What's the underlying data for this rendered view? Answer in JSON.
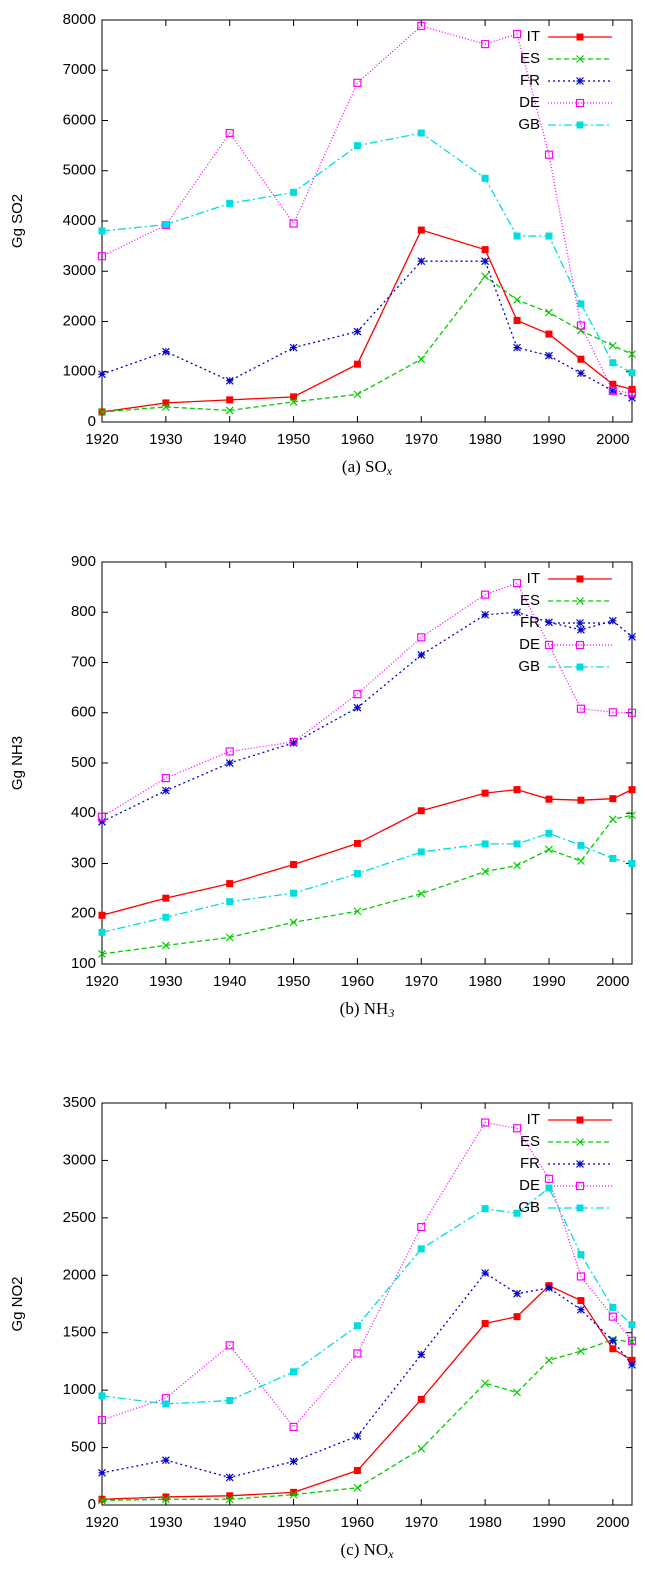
{
  "chart_data": [
    {
      "type": "line",
      "ylabel": "Gg SO2",
      "caption": {
        "main": "(a) SO",
        "sub": "x"
      },
      "x": [
        1920,
        1930,
        1940,
        1950,
        1960,
        1970,
        1980,
        1985,
        1990,
        1995,
        2000,
        2003
      ],
      "xlim": [
        1920,
        2003
      ],
      "xticks": [
        1920,
        1930,
        1940,
        1950,
        1960,
        1970,
        1980,
        1990,
        2000
      ],
      "ylim": [
        0,
        8000
      ],
      "yticks": [
        0,
        1000,
        2000,
        3000,
        4000,
        5000,
        6000,
        7000,
        8000
      ],
      "series": [
        {
          "name": "IT",
          "color": "#ff0000",
          "values": [
            200,
            380,
            440,
            500,
            1150,
            3820,
            3430,
            2020,
            1750,
            1250,
            750,
            650
          ]
        },
        {
          "name": "ES",
          "color": "#00cc00",
          "values": [
            200,
            300,
            230,
            400,
            550,
            1250,
            2900,
            2430,
            2180,
            1820,
            1520,
            1350
          ]
        },
        {
          "name": "FR",
          "color": "#0000cc",
          "values": [
            950,
            1400,
            820,
            1480,
            1800,
            3200,
            3200,
            1480,
            1320,
            970,
            620,
            480
          ]
        },
        {
          "name": "DE",
          "color": "#ff00ff",
          "values": [
            3300,
            3920,
            5750,
            3950,
            6750,
            7880,
            7520,
            7720,
            5320,
            1920,
            620,
            580
          ]
        },
        {
          "name": "GB",
          "color": "#00dddd",
          "values": [
            3800,
            3930,
            4350,
            4570,
            5500,
            5750,
            4850,
            3700,
            3700,
            2350,
            1180,
            980
          ]
        }
      ]
    },
    {
      "type": "line",
      "ylabel": "Gg NH3",
      "caption": {
        "main": "(b) NH",
        "sub": "3"
      },
      "x": [
        1920,
        1930,
        1940,
        1950,
        1960,
        1970,
        1980,
        1985,
        1990,
        1995,
        2000,
        2003
      ],
      "xlim": [
        1920,
        2003
      ],
      "xticks": [
        1920,
        1930,
        1940,
        1950,
        1960,
        1970,
        1980,
        1990,
        2000
      ],
      "ylim": [
        100,
        900
      ],
      "yticks": [
        100,
        200,
        300,
        400,
        500,
        600,
        700,
        800,
        900
      ],
      "series": [
        {
          "name": "IT",
          "color": "#ff0000",
          "values": [
            197,
            231,
            260,
            298,
            340,
            405,
            440,
            447,
            428,
            426,
            429,
            447
          ]
        },
        {
          "name": "ES",
          "color": "#00cc00",
          "values": [
            120,
            137,
            153,
            183,
            205,
            240,
            284,
            296,
            328,
            305,
            388,
            396
          ]
        },
        {
          "name": "FR",
          "color": "#0000cc",
          "values": [
            383,
            445,
            500,
            540,
            610,
            715,
            795,
            800,
            780,
            765,
            783,
            751
          ]
        },
        {
          "name": "DE",
          "color": "#ff00ff",
          "values": [
            393,
            470,
            523,
            542,
            637,
            750,
            835,
            858,
            735,
            608,
            601,
            600
          ]
        },
        {
          "name": "GB",
          "color": "#00dddd",
          "values": [
            163,
            193,
            224,
            241,
            280,
            323,
            339,
            339,
            360,
            336,
            310,
            300
          ]
        }
      ]
    },
    {
      "type": "line",
      "ylabel": "Gg NO2",
      "caption": {
        "main": "(c) NO",
        "sub": "x"
      },
      "x": [
        1920,
        1930,
        1940,
        1950,
        1960,
        1970,
        1980,
        1985,
        1990,
        1995,
        2000,
        2003
      ],
      "xlim": [
        1920,
        2003
      ],
      "xticks": [
        1920,
        1930,
        1940,
        1950,
        1960,
        1970,
        1980,
        1990,
        2000
      ],
      "ylim": [
        0,
        3500
      ],
      "yticks": [
        0,
        500,
        1000,
        1500,
        2000,
        2500,
        3000,
        3500
      ],
      "series": [
        {
          "name": "IT",
          "color": "#ff0000",
          "values": [
            50,
            70,
            80,
            110,
            300,
            920,
            1580,
            1640,
            1910,
            1780,
            1360,
            1260
          ]
        },
        {
          "name": "ES",
          "color": "#00cc00",
          "values": [
            40,
            50,
            50,
            90,
            150,
            490,
            1060,
            980,
            1260,
            1340,
            1440,
            1420
          ]
        },
        {
          "name": "FR",
          "color": "#0000cc",
          "values": [
            280,
            390,
            240,
            380,
            600,
            1310,
            2020,
            1840,
            1890,
            1700,
            1430,
            1220
          ]
        },
        {
          "name": "DE",
          "color": "#ff00ff",
          "values": [
            740,
            930,
            1390,
            680,
            1320,
            2420,
            3330,
            3280,
            2840,
            1990,
            1640,
            1430
          ]
        },
        {
          "name": "GB",
          "color": "#00dddd",
          "values": [
            950,
            880,
            910,
            1160,
            1560,
            2230,
            2580,
            2540,
            2760,
            2180,
            1720,
            1570
          ]
        }
      ]
    }
  ]
}
